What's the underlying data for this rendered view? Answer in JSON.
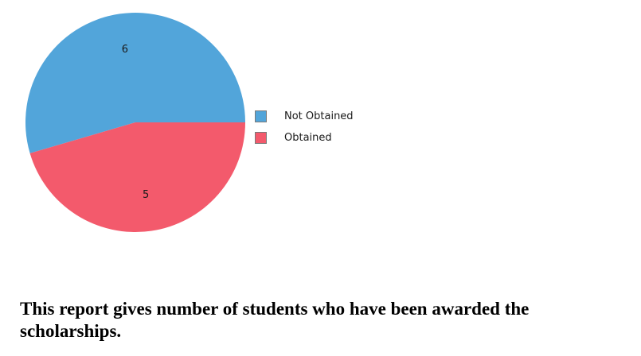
{
  "chart_data": {
    "type": "pie",
    "categories": [
      "Not Obtained",
      "Obtained"
    ],
    "values": [
      6,
      5
    ],
    "data_labels": [
      "6",
      "5"
    ],
    "colors": [
      "#52a5da",
      "#f35a6c"
    ],
    "legend_position": "right",
    "title": ""
  },
  "legend": {
    "items": [
      {
        "label": "Not Obtained",
        "color": "#52a5da"
      },
      {
        "label": "Obtained",
        "color": "#f35a6c"
      }
    ]
  },
  "caption": {
    "text": "This report gives number of students who have been awarded the scholarships."
  }
}
